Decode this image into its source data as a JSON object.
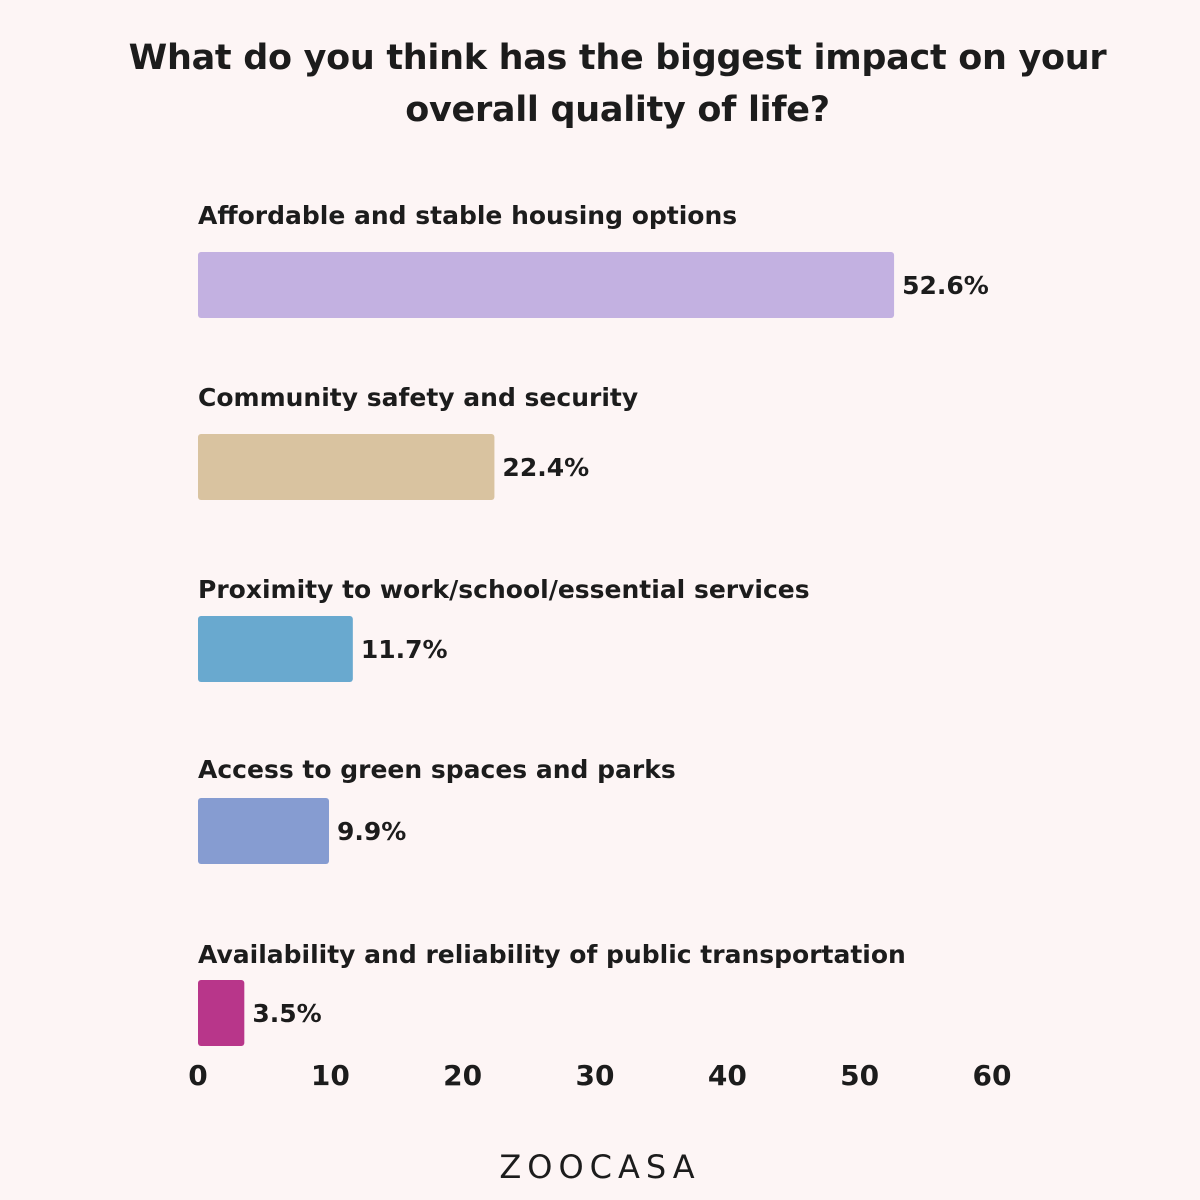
{
  "chart_data": {
    "type": "bar",
    "orientation": "horizontal",
    "title": "What do you think has the biggest impact on your overall quality of life?",
    "categories": [
      "Affordable and stable housing options",
      "Community safety and security",
      "Proximity to work/school/essential services",
      "Access to green spaces and parks",
      "Availability and reliability of public transportation"
    ],
    "values": [
      52.6,
      22.4,
      11.7,
      9.9,
      3.5
    ],
    "value_labels": [
      "52.6%",
      "22.4%",
      "11.7%",
      "9.9%",
      "3.5%"
    ],
    "colors": [
      "#c3b1e1",
      "#d9c3a0",
      "#69a9cf",
      "#869cd1",
      "#b8368a"
    ],
    "xlim": [
      0,
      60
    ],
    "x_ticks": [
      0,
      10,
      20,
      30,
      40,
      50,
      60
    ],
    "grid": false,
    "legend": "none"
  },
  "brand": {
    "logo_text": "ZOOCASA"
  }
}
